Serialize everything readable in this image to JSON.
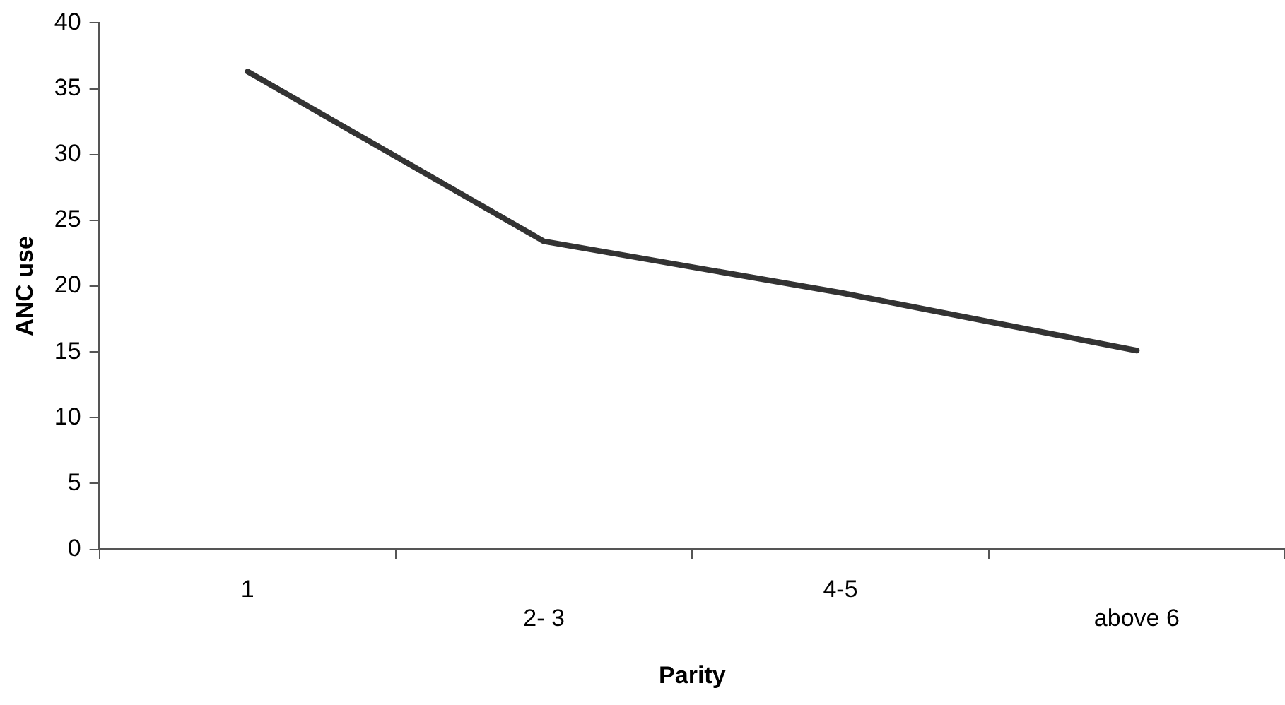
{
  "chart_data": {
    "type": "line",
    "xlabel": "Parity",
    "ylabel": "ANC use",
    "categories": [
      "1",
      "2- 3",
      "4-5",
      "above 6"
    ],
    "series": [
      {
        "color": "#333333",
        "values": [
          36.3,
          23.4,
          19.5,
          15.1
        ]
      }
    ],
    "ylim": [
      0,
      40
    ],
    "yticks": [
      0,
      5,
      10,
      15,
      20,
      25,
      30,
      35,
      40
    ],
    "grid": false,
    "legend": false,
    "marker": "none"
  }
}
